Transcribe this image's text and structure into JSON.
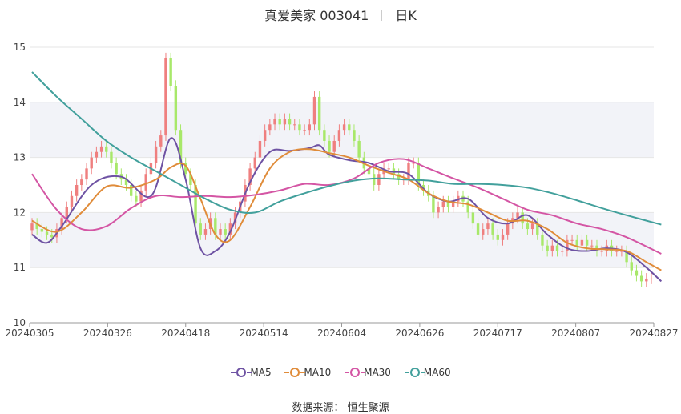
{
  "header": {
    "title": "真爱美家 003041",
    "period": "日K"
  },
  "source": {
    "label": "数据来源：",
    "name": "恒生聚源"
  },
  "colors": {
    "up": "#ef7f7f",
    "down": "#a8e86a",
    "ma5": "#6e52a3",
    "ma10": "#e08c3a",
    "ma30": "#d455a4",
    "ma60": "#42a09c",
    "grid": "#e6e6e6",
    "band": "#f2f3f8"
  },
  "legend": [
    {
      "key": "ma5",
      "label": "MA5"
    },
    {
      "key": "ma10",
      "label": "MA10"
    },
    {
      "key": "ma30",
      "label": "MA30"
    },
    {
      "key": "ma60",
      "label": "MA60"
    }
  ],
  "chart_data": {
    "type": "candlestick",
    "ylim": [
      10,
      15
    ],
    "yticks": [
      10,
      11,
      12,
      13,
      14,
      15
    ],
    "xticks": [
      "20240305",
      "20240326",
      "20240418",
      "20240514",
      "20240604",
      "20240626",
      "20240717",
      "20240807",
      "20240827"
    ],
    "grid": true,
    "legend_position": "bottom",
    "closes": [
      11.8,
      11.7,
      11.65,
      11.6,
      11.55,
      11.7,
      11.9,
      12.1,
      12.3,
      12.5,
      12.6,
      12.8,
      13.0,
      13.1,
      13.2,
      13.1,
      12.9,
      12.7,
      12.6,
      12.5,
      12.3,
      12.2,
      12.4,
      12.7,
      12.9,
      13.2,
      13.4,
      14.8,
      14.3,
      13.5,
      12.9,
      12.7,
      12.5,
      11.8,
      11.6,
      11.7,
      11.9,
      11.6,
      11.7,
      11.6,
      11.8,
      12.0,
      12.2,
      12.5,
      12.8,
      13.0,
      13.3,
      13.5,
      13.6,
      13.7,
      13.6,
      13.7,
      13.6,
      13.6,
      13.5,
      13.5,
      13.6,
      14.1,
      13.5,
      13.3,
      13.1,
      13.3,
      13.5,
      13.6,
      13.5,
      13.3,
      13.0,
      12.8,
      12.7,
      12.5,
      12.7,
      12.8,
      12.8,
      12.7,
      12.6,
      12.6,
      12.9,
      12.9,
      12.5,
      12.4,
      12.3,
      12.0,
      12.1,
      12.2,
      12.1,
      12.2,
      12.3,
      12.2,
      12.0,
      11.8,
      11.6,
      11.7,
      11.8,
      11.6,
      11.5,
      11.6,
      11.8,
      11.9,
      12.0,
      11.8,
      11.7,
      11.8,
      11.6,
      11.4,
      11.3,
      11.4,
      11.3,
      11.3,
      11.5,
      11.5,
      11.4,
      11.5,
      11.4,
      11.4,
      11.3,
      11.3,
      11.4,
      11.3,
      11.3,
      11.3,
      11.1,
      10.95,
      10.85,
      10.75,
      10.8,
      10.8
    ],
    "series": [
      {
        "name": "MA5",
        "x": [
          0,
          3,
          6,
          12,
          18,
          24,
          28,
          31,
          34,
          37,
          40,
          44,
          48,
          52,
          56,
          58,
          60,
          64,
          68,
          72,
          76,
          80,
          84,
          88,
          92,
          96,
          100,
          104,
          108,
          112,
          116,
          120,
          124,
          127
        ],
        "values": [
          11.6,
          11.45,
          11.75,
          12.5,
          12.65,
          12.3,
          13.35,
          12.6,
          11.35,
          11.3,
          11.65,
          12.55,
          13.1,
          13.12,
          13.17,
          13.22,
          13.05,
          12.95,
          12.9,
          12.75,
          12.7,
          12.35,
          12.2,
          12.25,
          11.9,
          11.8,
          11.95,
          11.6,
          11.35,
          11.3,
          11.35,
          11.28,
          11.0,
          10.75
        ]
      },
      {
        "name": "MA10",
        "x": [
          0,
          5,
          10,
          15,
          20,
          25,
          28,
          31,
          34,
          37,
          40,
          44,
          48,
          52,
          56,
          60,
          64,
          68,
          72,
          76,
          80,
          84,
          88,
          92,
          96,
          100,
          104,
          108,
          112,
          116,
          120,
          124,
          127
        ],
        "values": [
          11.85,
          11.65,
          12.0,
          12.47,
          12.45,
          12.6,
          12.82,
          12.85,
          12.25,
          11.6,
          11.5,
          12.1,
          12.8,
          13.1,
          13.15,
          13.08,
          13.0,
          12.85,
          12.72,
          12.6,
          12.35,
          12.2,
          12.15,
          12.0,
          11.85,
          11.85,
          11.7,
          11.45,
          11.35,
          11.33,
          11.3,
          11.1,
          10.95
        ]
      },
      {
        "name": "MA30",
        "x": [
          0,
          5,
          10,
          15,
          20,
          25,
          30,
          35,
          40,
          45,
          50,
          55,
          60,
          65,
          70,
          75,
          80,
          85,
          90,
          95,
          100,
          105,
          110,
          115,
          120,
          127
        ],
        "values": [
          12.7,
          12.05,
          11.7,
          11.75,
          12.08,
          12.3,
          12.28,
          12.3,
          12.28,
          12.32,
          12.4,
          12.52,
          12.5,
          12.62,
          12.9,
          12.97,
          12.8,
          12.62,
          12.45,
          12.25,
          12.05,
          11.95,
          11.8,
          11.7,
          11.55,
          11.25
        ]
      },
      {
        "name": "MA60",
        "x": [
          0,
          5,
          10,
          15,
          20,
          25,
          30,
          35,
          40,
          45,
          50,
          55,
          60,
          65,
          70,
          75,
          80,
          85,
          90,
          95,
          100,
          105,
          110,
          115,
          120,
          127
        ],
        "values": [
          14.55,
          14.1,
          13.7,
          13.3,
          13.0,
          12.75,
          12.5,
          12.25,
          12.05,
          12.0,
          12.2,
          12.35,
          12.48,
          12.58,
          12.62,
          12.6,
          12.58,
          12.52,
          12.52,
          12.5,
          12.45,
          12.35,
          12.22,
          12.08,
          11.95,
          11.78
        ]
      }
    ]
  }
}
